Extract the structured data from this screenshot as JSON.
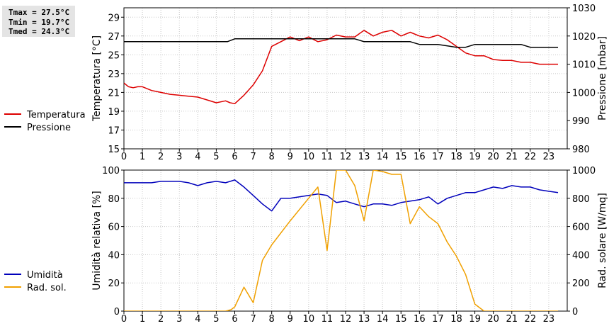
{
  "stats": {
    "tmax": "Tmax = 27.5°C",
    "tmin": "Tmin = 19.7°C",
    "tmed": "Tmed = 24.3°C"
  },
  "chart_data": [
    {
      "type": "line",
      "xlim": [
        0,
        24
      ],
      "x_ticks": [
        "0",
        "1",
        "2",
        "3",
        "4",
        "5",
        "6",
        "7",
        "8",
        "9",
        "10",
        "11",
        "12",
        "13",
        "14",
        "15",
        "16",
        "17",
        "18",
        "19",
        "20",
        "21",
        "22",
        "23"
      ],
      "ylabel": "Temperatura [°C]",
      "ylim": [
        15,
        30
      ],
      "y_ticks": [
        15,
        17,
        19,
        21,
        23,
        25,
        27,
        29
      ],
      "y2label": "Pressione [mbar]",
      "y2lim": [
        980,
        1030
      ],
      "y2_ticks": [
        980,
        990,
        1000,
        1010,
        1020,
        1030
      ],
      "grid": true,
      "legend_position": "left",
      "series": [
        {
          "name": "Temperatura",
          "color": "#dd0000",
          "axis": "left",
          "x": [
            0,
            0.25,
            0.5,
            0.75,
            1,
            1.25,
            1.5,
            2,
            2.5,
            3,
            3.5,
            4,
            4.5,
            5,
            5.25,
            5.5,
            5.75,
            6,
            6.5,
            7,
            7.5,
            8,
            8.5,
            9,
            9.5,
            10,
            10.5,
            11,
            11.5,
            12,
            12.5,
            13,
            13.5,
            14,
            14.5,
            15,
            15.5,
            16,
            16.5,
            17,
            17.5,
            18,
            18.5,
            19,
            19.5,
            20,
            20.5,
            21,
            21.5,
            22,
            22.5,
            23,
            23.5
          ],
          "values": [
            22.0,
            21.6,
            21.5,
            21.6,
            21.6,
            21.4,
            21.2,
            21.0,
            20.8,
            20.7,
            20.6,
            20.5,
            20.2,
            19.9,
            20.0,
            20.1,
            19.9,
            19.8,
            20.7,
            21.8,
            23.3,
            25.9,
            26.4,
            26.9,
            26.5,
            26.9,
            26.4,
            26.6,
            27.1,
            26.9,
            26.9,
            27.6,
            27.0,
            27.4,
            27.6,
            27.0,
            27.4,
            27.0,
            26.8,
            27.1,
            26.6,
            25.9,
            25.2,
            24.9,
            24.9,
            24.5,
            24.4,
            24.4,
            24.2,
            24.2,
            24.0,
            24.0,
            24.0
          ]
        },
        {
          "name": "Pressione",
          "color": "#000000",
          "axis": "right",
          "x": [
            0,
            5.5,
            5.6,
            6.0,
            6.2,
            12.5,
            13.0,
            15.5,
            16.0,
            17.0,
            18.0,
            18.5,
            19.0,
            21.5,
            22.0,
            23.5
          ],
          "values": [
            1018,
            1018,
            1018,
            1019,
            1019,
            1019,
            1018,
            1018,
            1017,
            1017,
            1016,
            1016,
            1017,
            1017,
            1016,
            1016
          ]
        }
      ]
    },
    {
      "type": "line",
      "xlim": [
        0,
        24
      ],
      "x_ticks": [
        "0",
        "1",
        "2",
        "3",
        "4",
        "5",
        "6",
        "7",
        "8",
        "9",
        "10",
        "11",
        "12",
        "13",
        "14",
        "15",
        "16",
        "17",
        "18",
        "19",
        "20",
        "21",
        "22",
        "23"
      ],
      "ylabel": "Umidità relativa [%]",
      "ylim": [
        0,
        100
      ],
      "y_ticks": [
        0,
        20,
        40,
        60,
        80,
        100
      ],
      "y2label": "Rad. solare [W/mq]",
      "y2lim": [
        0,
        1000
      ],
      "y2_ticks": [
        0,
        200,
        400,
        600,
        800,
        1000
      ],
      "grid": true,
      "legend_position": "left",
      "series": [
        {
          "name": "Umidità",
          "color": "#0000bb",
          "axis": "left",
          "x": [
            0,
            1,
            1.5,
            2,
            3,
            3.5,
            4,
            4.5,
            5,
            5.5,
            6,
            6.5,
            7,
            7.5,
            8,
            8.5,
            9,
            9.5,
            10,
            10.5,
            11,
            11.5,
            12,
            12.5,
            13,
            13.5,
            14,
            14.5,
            15,
            15.5,
            16,
            16.5,
            17,
            17.5,
            18,
            18.5,
            19,
            19.5,
            20,
            20.5,
            21,
            21.5,
            22,
            22.5,
            23,
            23.5
          ],
          "values": [
            91,
            91,
            91,
            92,
            92,
            91,
            89,
            91,
            92,
            91,
            93,
            88,
            82,
            76,
            71,
            80,
            80,
            81,
            82,
            83,
            82,
            77,
            78,
            76,
            74,
            76,
            76,
            75,
            77,
            78,
            79,
            81,
            76,
            80,
            82,
            84,
            84,
            86,
            88,
            87,
            89,
            88,
            88,
            86,
            85,
            84
          ]
        },
        {
          "name": "Rad. sol.",
          "color": "#f0a000",
          "axis": "right",
          "x": [
            0,
            5.5,
            5.8,
            6.0,
            6.5,
            7.0,
            7.5,
            8.0,
            9.0,
            10.0,
            10.5,
            11.0,
            11.5,
            12.0,
            12.5,
            13.0,
            13.5,
            14.0,
            14.5,
            15.0,
            15.5,
            16.0,
            16.5,
            17.0,
            17.5,
            18.0,
            18.5,
            19.0,
            19.5,
            20.0,
            23.5
          ],
          "values": [
            0,
            0,
            10,
            30,
            170,
            60,
            360,
            470,
            640,
            800,
            880,
            430,
            1000,
            1000,
            890,
            640,
            1000,
            990,
            970,
            970,
            620,
            740,
            670,
            620,
            490,
            390,
            260,
            50,
            0,
            0,
            0
          ]
        }
      ]
    }
  ]
}
